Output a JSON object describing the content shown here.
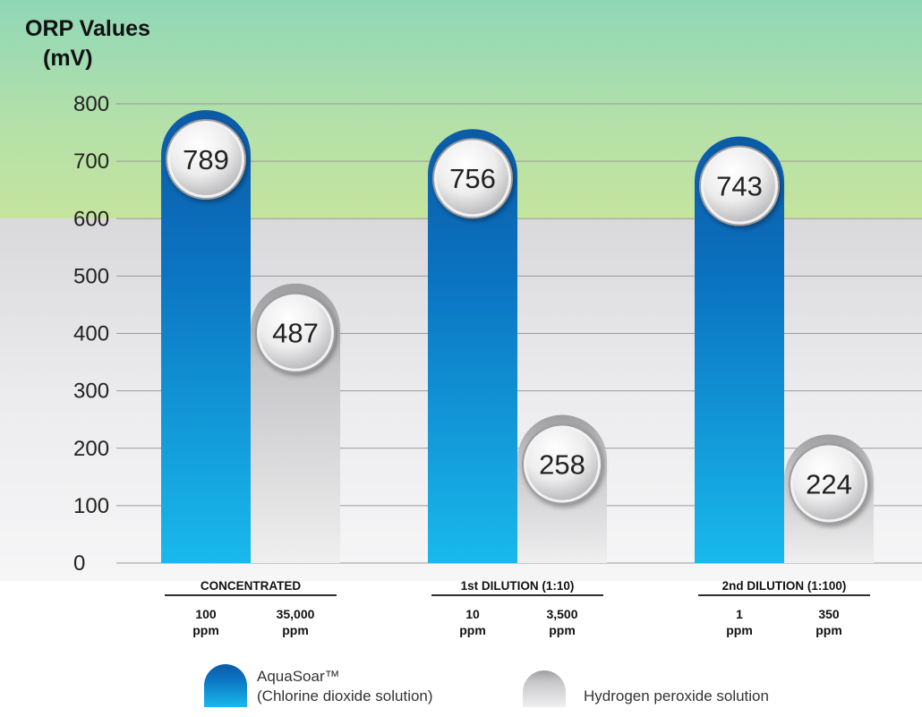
{
  "chart_data": {
    "type": "bar",
    "ylabel_line1": "ORP Values",
    "ylabel_line2": "(mV)",
    "ylim": [
      0,
      800
    ],
    "yticks": [
      "0",
      "100",
      "200",
      "300",
      "400",
      "500",
      "600",
      "700",
      "800"
    ],
    "grid": true,
    "categories": [
      "CONCENTRATED",
      "1st DILUTION (1:10)",
      "2nd DILUTION (1:100)"
    ],
    "series": [
      {
        "name": "AquaSoar™",
        "name_sub": "(Chlorine dioxide solution)",
        "values": [
          789,
          756,
          743
        ],
        "value_labels": [
          "789",
          "756",
          "743"
        ],
        "ppm_values": [
          "100",
          "10",
          "1"
        ],
        "ppm_unit": "ppm",
        "color": "#0a6cb5"
      },
      {
        "name": "Hydrogen peroxide solution",
        "values": [
          487,
          258,
          224
        ],
        "value_labels": [
          "487",
          "258",
          "224"
        ],
        "ppm_values": [
          "35,000",
          "3,500",
          "350"
        ],
        "ppm_unit": "ppm",
        "color": "#c8c8ca"
      }
    ],
    "legend_position": "bottom",
    "colors": {
      "band_green": "#a9dfae",
      "band_gray": "#e4e4e6",
      "blue_top": "#0a5fae",
      "blue_bottom": "#1bb7ea",
      "gray_top": "#a9a9ab",
      "gray_bottom": "#e9e9eb"
    }
  }
}
